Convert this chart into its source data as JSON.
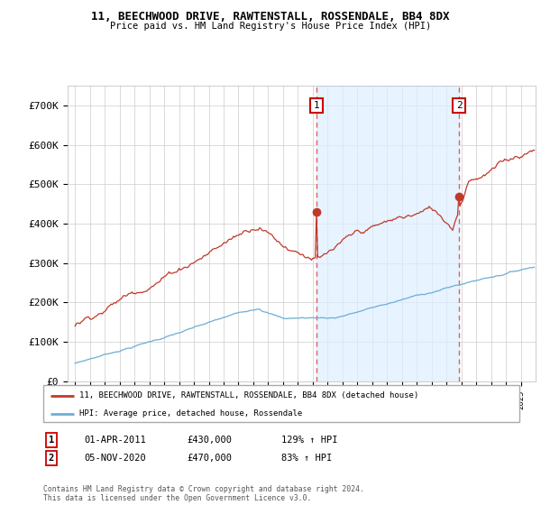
{
  "title": "11, BEECHWOOD DRIVE, RAWTENSTALL, ROSSENDALE, BB4 8DX",
  "subtitle": "Price paid vs. HM Land Registry's House Price Index (HPI)",
  "hpi_color": "#6baed6",
  "price_color": "#c0392b",
  "dashed_color": "#e06060",
  "shade_color": "#ddeeff",
  "ylim": [
    0,
    750000
  ],
  "yticks": [
    0,
    100000,
    200000,
    300000,
    400000,
    500000,
    600000,
    700000
  ],
  "ytick_labels": [
    "£0",
    "£100K",
    "£200K",
    "£300K",
    "£400K",
    "£500K",
    "£600K",
    "£700K"
  ],
  "sale1_year": 2011.25,
  "sale1_y": 430000,
  "sale1_label": "1",
  "sale2_year": 2020.85,
  "sale2_y": 470000,
  "sale2_label": "2",
  "legend_line1": "11, BEECHWOOD DRIVE, RAWTENSTALL, ROSSENDALE, BB4 8DX (detached house)",
  "legend_line2": "HPI: Average price, detached house, Rossendale",
  "table_row1": [
    "1",
    "01-APR-2011",
    "£430,000",
    "129% ↑ HPI"
  ],
  "table_row2": [
    "2",
    "05-NOV-2020",
    "£470,000",
    "83% ↑ HPI"
  ],
  "footer": "Contains HM Land Registry data © Crown copyright and database right 2024.\nThis data is licensed under the Open Government Licence v3.0.",
  "xmin": 1994.5,
  "xmax": 2026.0
}
